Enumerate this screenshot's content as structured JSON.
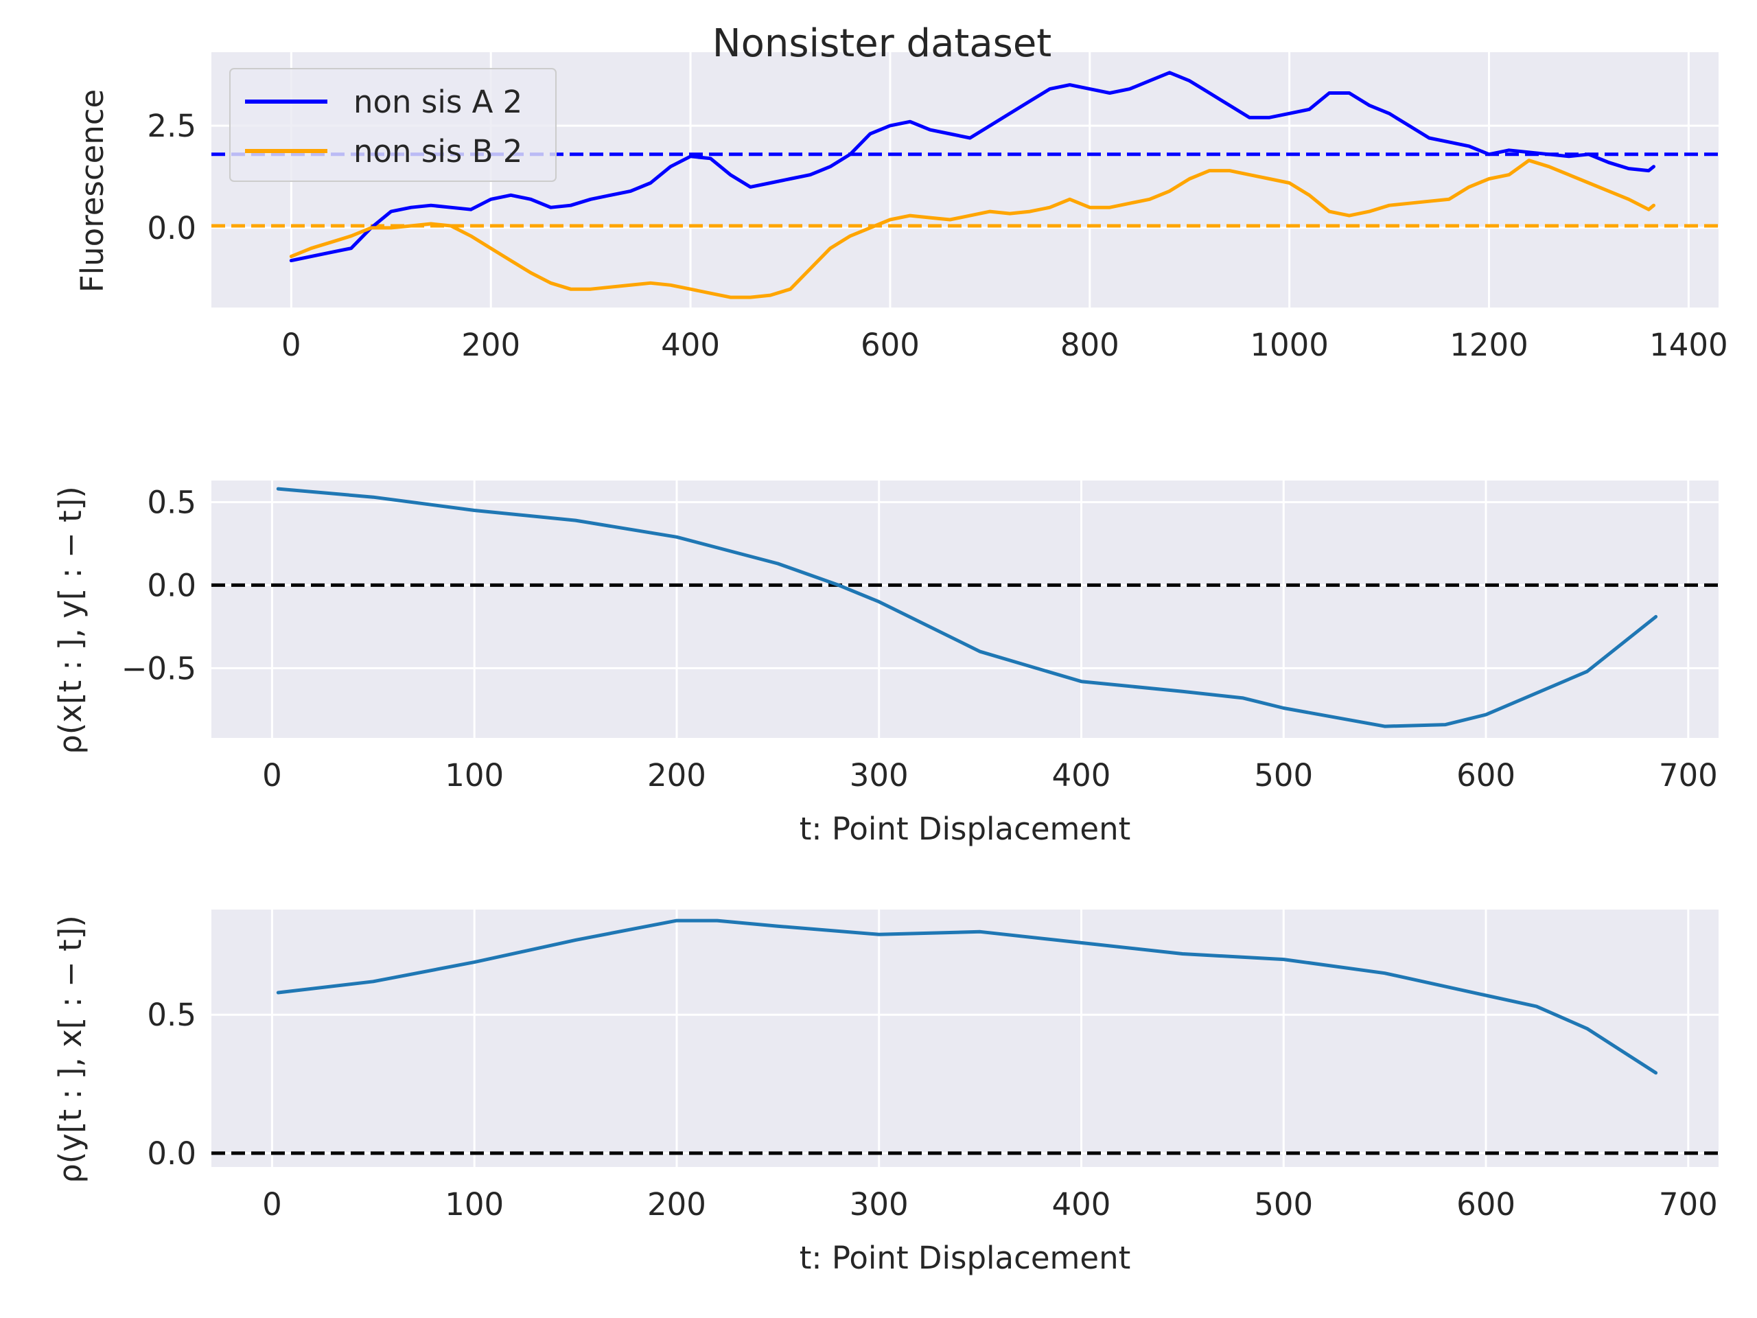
{
  "figure_title": "Nonsister dataset",
  "chart_data": [
    {
      "type": "line",
      "xlabel": "",
      "ylabel": "Fluorescence",
      "xlim": [
        -80,
        1430
      ],
      "ylim": [
        -1.95,
        4.3
      ],
      "xticks": [
        0,
        200,
        400,
        600,
        800,
        1000,
        1200,
        1400
      ],
      "xtick_labels": [
        "0",
        "200",
        "400",
        "600",
        "800",
        "1000",
        "1200",
        "1400"
      ],
      "yticks": [
        0.0,
        2.5
      ],
      "ytick_labels": [
        "0.0",
        "2.5"
      ],
      "grid": true,
      "legend_position": "upper-left",
      "series": [
        {
          "name": "non sis A 2",
          "color": "#0000ff",
          "x": [
            0,
            20,
            40,
            60,
            80,
            100,
            120,
            140,
            160,
            180,
            200,
            220,
            240,
            260,
            280,
            300,
            320,
            340,
            360,
            380,
            400,
            420,
            440,
            460,
            480,
            500,
            520,
            540,
            560,
            580,
            600,
            620,
            640,
            660,
            680,
            700,
            720,
            740,
            760,
            780,
            800,
            820,
            840,
            860,
            880,
            900,
            920,
            940,
            960,
            980,
            1000,
            1020,
            1040,
            1060,
            1080,
            1100,
            1120,
            1140,
            1160,
            1180,
            1200,
            1220,
            1240,
            1260,
            1280,
            1300,
            1320,
            1340,
            1360,
            1365
          ],
          "y": [
            -0.8,
            -0.7,
            -0.6,
            -0.5,
            0.0,
            0.4,
            0.5,
            0.55,
            0.5,
            0.45,
            0.7,
            0.8,
            0.7,
            0.5,
            0.55,
            0.7,
            0.8,
            0.9,
            1.1,
            1.5,
            1.75,
            1.7,
            1.3,
            1.0,
            1.1,
            1.2,
            1.3,
            1.5,
            1.8,
            2.3,
            2.5,
            2.6,
            2.4,
            2.3,
            2.2,
            2.5,
            2.8,
            3.1,
            3.4,
            3.5,
            3.4,
            3.3,
            3.4,
            3.6,
            3.8,
            3.6,
            3.3,
            3.0,
            2.7,
            2.7,
            2.8,
            2.9,
            3.3,
            3.3,
            3.0,
            2.8,
            2.5,
            2.2,
            2.1,
            2.0,
            1.8,
            1.9,
            1.85,
            1.8,
            1.75,
            1.8,
            1.6,
            1.45,
            1.4,
            1.5
          ]
        },
        {
          "name": "non sis B 2",
          "color": "#ffa500",
          "x": [
            0,
            20,
            40,
            60,
            80,
            100,
            120,
            140,
            160,
            180,
            200,
            220,
            240,
            260,
            280,
            300,
            320,
            340,
            360,
            380,
            400,
            420,
            440,
            460,
            480,
            500,
            520,
            540,
            560,
            580,
            600,
            620,
            640,
            660,
            680,
            700,
            720,
            740,
            760,
            780,
            800,
            820,
            840,
            860,
            880,
            900,
            920,
            940,
            960,
            980,
            1000,
            1020,
            1040,
            1060,
            1080,
            1100,
            1120,
            1140,
            1160,
            1180,
            1200,
            1220,
            1240,
            1260,
            1280,
            1300,
            1320,
            1340,
            1360,
            1365
          ],
          "y": [
            -0.7,
            -0.5,
            -0.35,
            -0.2,
            0.0,
            0.0,
            0.05,
            0.1,
            0.05,
            -0.2,
            -0.5,
            -0.8,
            -1.1,
            -1.35,
            -1.5,
            -1.5,
            -1.45,
            -1.4,
            -1.35,
            -1.4,
            -1.5,
            -1.6,
            -1.7,
            -1.7,
            -1.65,
            -1.5,
            -1.0,
            -0.5,
            -0.2,
            0.0,
            0.2,
            0.3,
            0.25,
            0.2,
            0.3,
            0.4,
            0.35,
            0.4,
            0.5,
            0.7,
            0.5,
            0.5,
            0.6,
            0.7,
            0.9,
            1.2,
            1.4,
            1.4,
            1.3,
            1.2,
            1.1,
            0.8,
            0.4,
            0.3,
            0.4,
            0.55,
            0.6,
            0.65,
            0.7,
            1.0,
            1.2,
            1.3,
            1.65,
            1.5,
            1.3,
            1.1,
            0.9,
            0.7,
            0.45,
            0.55
          ]
        }
      ],
      "hlines": [
        {
          "y": 1.8,
          "color": "#0000ff",
          "style": "dashed"
        },
        {
          "y": 0.05,
          "color": "#ffa500",
          "style": "dashed"
        }
      ]
    },
    {
      "type": "line",
      "xlabel": "t: Point Displacement",
      "ylabel": "ρ(x[t : ], y[ : − t])",
      "xlim": [
        -30,
        715
      ],
      "ylim": [
        -0.92,
        0.63
      ],
      "xticks": [
        0,
        100,
        200,
        300,
        400,
        500,
        600,
        700
      ],
      "xtick_labels": [
        "0",
        "100",
        "200",
        "300",
        "400",
        "500",
        "600",
        "700"
      ],
      "yticks": [
        -0.5,
        0.0,
        0.5
      ],
      "ytick_labels": [
        "−0.5",
        "0.0",
        "0.5"
      ],
      "grid": true,
      "series": [
        {
          "color": "#1f77b4",
          "x": [
            3,
            50,
            100,
            150,
            200,
            250,
            280,
            300,
            350,
            400,
            450,
            480,
            500,
            550,
            580,
            600,
            650,
            684
          ],
          "y": [
            0.58,
            0.53,
            0.45,
            0.39,
            0.29,
            0.13,
            0.0,
            -0.1,
            -0.4,
            -0.58,
            -0.64,
            -0.68,
            -0.74,
            -0.85,
            -0.84,
            -0.78,
            -0.52,
            -0.19
          ]
        }
      ],
      "hlines": [
        {
          "y": 0.0,
          "color": "#000000",
          "style": "dashed"
        }
      ]
    },
    {
      "type": "line",
      "xlabel": "t: Point Displacement",
      "ylabel": "ρ(y[t : ], x[ : − t])",
      "xlim": [
        -30,
        715
      ],
      "ylim": [
        -0.05,
        0.88
      ],
      "xticks": [
        0,
        100,
        200,
        300,
        400,
        500,
        600,
        700
      ],
      "xtick_labels": [
        "0",
        "100",
        "200",
        "300",
        "400",
        "500",
        "600",
        "700"
      ],
      "yticks": [
        0.0,
        0.5
      ],
      "ytick_labels": [
        "0.0",
        "0.5"
      ],
      "grid": true,
      "series": [
        {
          "color": "#1f77b4",
          "x": [
            3,
            50,
            100,
            150,
            200,
            220,
            250,
            300,
            350,
            400,
            450,
            500,
            550,
            600,
            625,
            650,
            684
          ],
          "y": [
            0.58,
            0.62,
            0.69,
            0.77,
            0.84,
            0.84,
            0.82,
            0.79,
            0.8,
            0.76,
            0.72,
            0.7,
            0.65,
            0.57,
            0.53,
            0.45,
            0.29
          ]
        }
      ],
      "hlines": [
        {
          "y": 0.0,
          "color": "#000000",
          "style": "dashed"
        }
      ]
    }
  ]
}
